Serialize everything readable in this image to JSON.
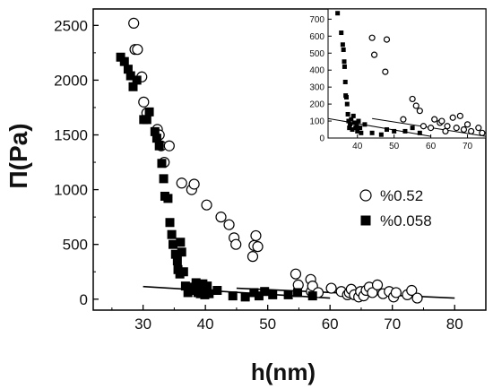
{
  "chart_data": {
    "type": "scatter",
    "xlabel": "h(nm)",
    "ylabel": "Π(Pa)",
    "xlim": [
      22,
      85
    ],
    "ylim": [
      -100,
      2650
    ],
    "xticks": [
      30,
      40,
      50,
      60,
      70,
      80
    ],
    "yticks": [
      0,
      500,
      1000,
      1500,
      2000,
      2500
    ],
    "grid": false,
    "legend": "center-right",
    "series": [
      {
        "name": "%0.52",
        "marker": "open-circle",
        "color": "#000000",
        "points": [
          [
            28.5,
            2520
          ],
          [
            28.7,
            2280
          ],
          [
            29.1,
            2280
          ],
          [
            29.8,
            2030
          ],
          [
            30.1,
            1800
          ],
          [
            30.6,
            1700
          ],
          [
            32.3,
            1550
          ],
          [
            32.6,
            1500
          ],
          [
            32.9,
            1400
          ],
          [
            33.4,
            1250
          ],
          [
            34.2,
            1400
          ],
          [
            36.2,
            1060
          ],
          [
            37.8,
            1000
          ],
          [
            38.2,
            1050
          ],
          [
            40.2,
            860
          ],
          [
            42.5,
            750
          ],
          [
            43.8,
            680
          ],
          [
            44.6,
            560
          ],
          [
            44.9,
            500
          ],
          [
            47.6,
            390
          ],
          [
            47.8,
            490
          ],
          [
            48.1,
            580
          ],
          [
            48.4,
            480
          ],
          [
            54.5,
            230
          ],
          [
            54.9,
            130
          ],
          [
            56.9,
            180
          ],
          [
            57.0,
            70
          ],
          [
            57.2,
            120
          ],
          [
            58.1,
            60
          ],
          [
            60.2,
            100
          ],
          [
            61.8,
            70
          ],
          [
            62.8,
            40
          ],
          [
            63.1,
            60
          ],
          [
            63.4,
            90
          ],
          [
            63.9,
            40
          ],
          [
            64.6,
            20
          ],
          [
            64.9,
            70
          ],
          [
            65.4,
            30
          ],
          [
            65.8,
            80
          ],
          [
            66.3,
            110
          ],
          [
            66.8,
            60
          ],
          [
            67.6,
            130
          ],
          [
            68.5,
            50
          ],
          [
            69.5,
            70
          ],
          [
            70.2,
            20
          ],
          [
            70.6,
            60
          ],
          [
            72.4,
            40
          ],
          [
            73.1,
            80
          ],
          [
            74.0,
            10
          ]
        ]
      },
      {
        "name": "%0.058",
        "marker": "filled-square",
        "color": "#000000",
        "points": [
          [
            26.4,
            2210
          ],
          [
            27.0,
            2170
          ],
          [
            27.6,
            2100
          ],
          [
            28.0,
            2040
          ],
          [
            28.4,
            1940
          ],
          [
            29.0,
            2000
          ],
          [
            30.1,
            1640
          ],
          [
            30.6,
            1640
          ],
          [
            31.0,
            1710
          ],
          [
            31.9,
            1530
          ],
          [
            32.2,
            1470
          ],
          [
            32.6,
            1400
          ],
          [
            33.0,
            1240
          ],
          [
            33.3,
            1100
          ],
          [
            33.5,
            940
          ],
          [
            34.0,
            920
          ],
          [
            34.3,
            700
          ],
          [
            34.6,
            590
          ],
          [
            34.8,
            500
          ],
          [
            35.2,
            410
          ],
          [
            35.5,
            350
          ],
          [
            35.6,
            270
          ],
          [
            35.9,
            230
          ],
          [
            36.0,
            520
          ],
          [
            36.2,
            430
          ],
          [
            36.5,
            250
          ],
          [
            36.8,
            120
          ],
          [
            37.2,
            60
          ],
          [
            37.6,
            80
          ],
          [
            38.1,
            110
          ],
          [
            38.5,
            150
          ],
          [
            38.8,
            60
          ],
          [
            39.0,
            130
          ],
          [
            39.2,
            50
          ],
          [
            39.6,
            140
          ],
          [
            39.9,
            40
          ],
          [
            40.3,
            120
          ],
          [
            40.6,
            50
          ],
          [
            41.9,
            80
          ],
          [
            44.4,
            30
          ],
          [
            46.4,
            20
          ],
          [
            47.8,
            60
          ],
          [
            48.6,
            30
          ],
          [
            49.5,
            70
          ],
          [
            50.8,
            40
          ],
          [
            53.3,
            40
          ],
          [
            54.8,
            60
          ],
          [
            57.2,
            30
          ]
        ]
      }
    ],
    "fit_lines": [
      {
        "x": [
          30,
          60
        ],
        "y": [
          115,
          10
        ]
      },
      {
        "x": [
          45,
          80
        ],
        "y": [
          100,
          10
        ]
      }
    ],
    "inset": {
      "xlim": [
        32,
        75
      ],
      "ylim": [
        0,
        760
      ],
      "xticks": [
        40,
        50,
        60,
        70
      ],
      "yticks": [
        0,
        100,
        200,
        300,
        400,
        500,
        600,
        700
      ],
      "series": [
        {
          "name": "%0.52",
          "marker": "open-circle",
          "points": [
            [
              42.0,
              765
            ],
            [
              44.0,
              590
            ],
            [
              44.6,
              490
            ],
            [
              47.6,
              390
            ],
            [
              48.0,
              580
            ],
            [
              52.5,
              110
            ],
            [
              55.0,
              230
            ],
            [
              56.0,
              190
            ],
            [
              57.0,
              160
            ],
            [
              58.0,
              70
            ],
            [
              60.0,
              60
            ],
            [
              61.0,
              110
            ],
            [
              62.5,
              90
            ],
            [
              63.0,
              100
            ],
            [
              64.0,
              40
            ],
            [
              64.5,
              70
            ],
            [
              66.0,
              120
            ],
            [
              67.0,
              60
            ],
            [
              68.0,
              130
            ],
            [
              69.0,
              50
            ],
            [
              70.0,
              80
            ],
            [
              71.0,
              40
            ],
            [
              73.0,
              60
            ],
            [
              74.0,
              30
            ]
          ]
        },
        {
          "name": "%0.058",
          "marker": "filled-square",
          "points": [
            [
              34.6,
              735
            ],
            [
              35.6,
              620
            ],
            [
              36.0,
              550
            ],
            [
              36.2,
              520
            ],
            [
              36.4,
              450
            ],
            [
              36.5,
              420
            ],
            [
              36.7,
              330
            ],
            [
              36.8,
              250
            ],
            [
              37.0,
              240
            ],
            [
              37.2,
              200
            ],
            [
              37.4,
              140
            ],
            [
              37.6,
              100
            ],
            [
              37.8,
              60
            ],
            [
              38.0,
              80
            ],
            [
              38.3,
              110
            ],
            [
              38.6,
              50
            ],
            [
              38.9,
              130
            ],
            [
              39.2,
              90
            ],
            [
              39.5,
              60
            ],
            [
              39.8,
              70
            ],
            [
              40.0,
              40
            ],
            [
              40.3,
              100
            ],
            [
              40.7,
              60
            ],
            [
              41.0,
              30
            ],
            [
              42.0,
              80
            ],
            [
              44.0,
              30
            ],
            [
              46.5,
              20
            ],
            [
              48.0,
              50
            ],
            [
              50.0,
              40
            ],
            [
              53.0,
              40
            ],
            [
              55.0,
              60
            ],
            [
              57.0,
              30
            ]
          ]
        }
      ],
      "fit_lines": [
        {
          "x": [
            32,
            60
          ],
          "y": [
            115,
            10
          ]
        },
        {
          "x": [
            44,
            75
          ],
          "y": [
            115,
            10
          ]
        }
      ]
    }
  }
}
